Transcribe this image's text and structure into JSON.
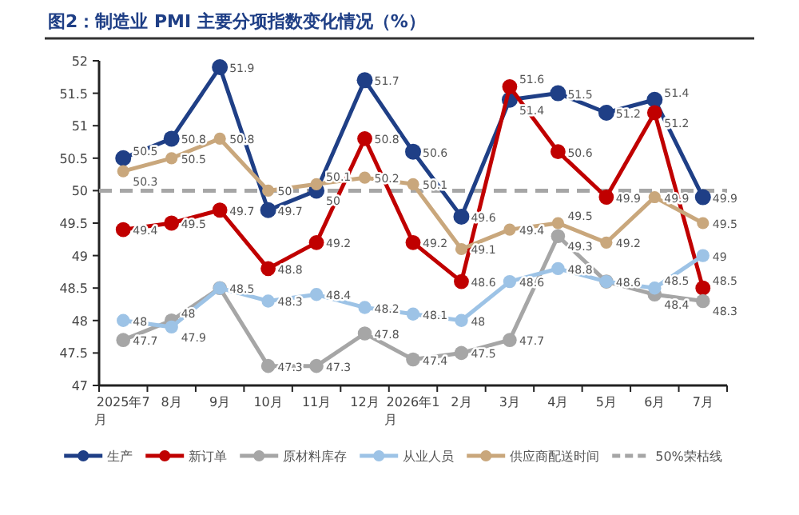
{
  "chart_data": {
    "type": "line",
    "title": "图2：制造业 PMI 主要分项指数变化情况（%）",
    "categories": [
      "2025年7月",
      "8月",
      "9月",
      "10月",
      "11月",
      "12月",
      "2026年1月",
      "2月",
      "3月",
      "4月",
      "5月",
      "6月",
      "7月"
    ],
    "series": [
      {
        "name": "生产",
        "color": "#1f3f86",
        "values": [
          50.5,
          50.8,
          51.9,
          49.7,
          50.0,
          51.7,
          50.6,
          49.6,
          51.4,
          51.5,
          51.2,
          51.4,
          49.9
        ],
        "value_labels": [
          "50.5",
          "50.8",
          "51.9",
          "49.7",
          "50",
          "51.7",
          "50.6",
          "49.6",
          "51.4",
          "51.5",
          "51.2",
          "51.4",
          "49.9"
        ]
      },
      {
        "name": "新订单",
        "color": "#c00000",
        "values": [
          49.4,
          49.5,
          49.7,
          48.8,
          49.2,
          50.8,
          49.2,
          48.6,
          51.6,
          50.6,
          49.9,
          51.2,
          48.5
        ],
        "value_labels": [
          "49.4",
          "49.5",
          "49.7",
          "48.8",
          "49.2",
          "50.8",
          "49.2",
          "48.6",
          "51.6",
          "50.6",
          "49.9",
          "51.2",
          "48.5"
        ]
      },
      {
        "name": "原材料库存",
        "color": "#a6a6a6",
        "values": [
          47.7,
          48.0,
          48.5,
          47.3,
          47.3,
          47.8,
          47.4,
          47.5,
          47.7,
          49.3,
          48.6,
          48.4,
          48.3
        ],
        "value_labels": [
          "47.7",
          "48",
          null,
          "47.3",
          "47.3",
          "47.8",
          "47.4",
          "47.5",
          "47.7",
          "49.3",
          "48.6",
          "48.4",
          "48.3"
        ]
      },
      {
        "name": "从业人员",
        "color": "#9dc3e6",
        "values": [
          48.0,
          47.9,
          48.5,
          48.3,
          48.4,
          48.2,
          48.1,
          48.0,
          48.6,
          48.8,
          48.6,
          48.5,
          49.0
        ],
        "value_labels": [
          "48",
          "47.9",
          "48.5",
          "48.3",
          "48.4",
          "48.2",
          "48.1",
          "48",
          "48.6",
          "48.8",
          null,
          "48.5",
          "49"
        ]
      },
      {
        "name": "供应商配送时间",
        "color": "#c9a77c",
        "values": [
          50.3,
          50.5,
          50.8,
          50.0,
          50.1,
          50.2,
          50.1,
          49.1,
          49.4,
          49.5,
          49.2,
          49.9,
          49.5
        ],
        "value_labels": [
          "50.3",
          "50.5",
          "50.8",
          "50",
          "50.1",
          "50.2",
          "50.1",
          "49.1",
          "49.4",
          "49.5",
          "49.2",
          "49.9",
          "49.5"
        ]
      }
    ],
    "ref_lines": [
      {
        "axis": "y",
        "value": 50,
        "label": "50%荣枯线",
        "color": "#a6a6a6",
        "line_style": "dashed"
      }
    ],
    "ylim": [
      47,
      52
    ],
    "yticks": [
      47,
      47.5,
      48,
      48.5,
      49,
      49.5,
      50,
      50.5,
      51,
      51.5,
      52
    ],
    "marker": "circle",
    "line_style": "solid",
    "grid": false,
    "legend": "bottom"
  }
}
